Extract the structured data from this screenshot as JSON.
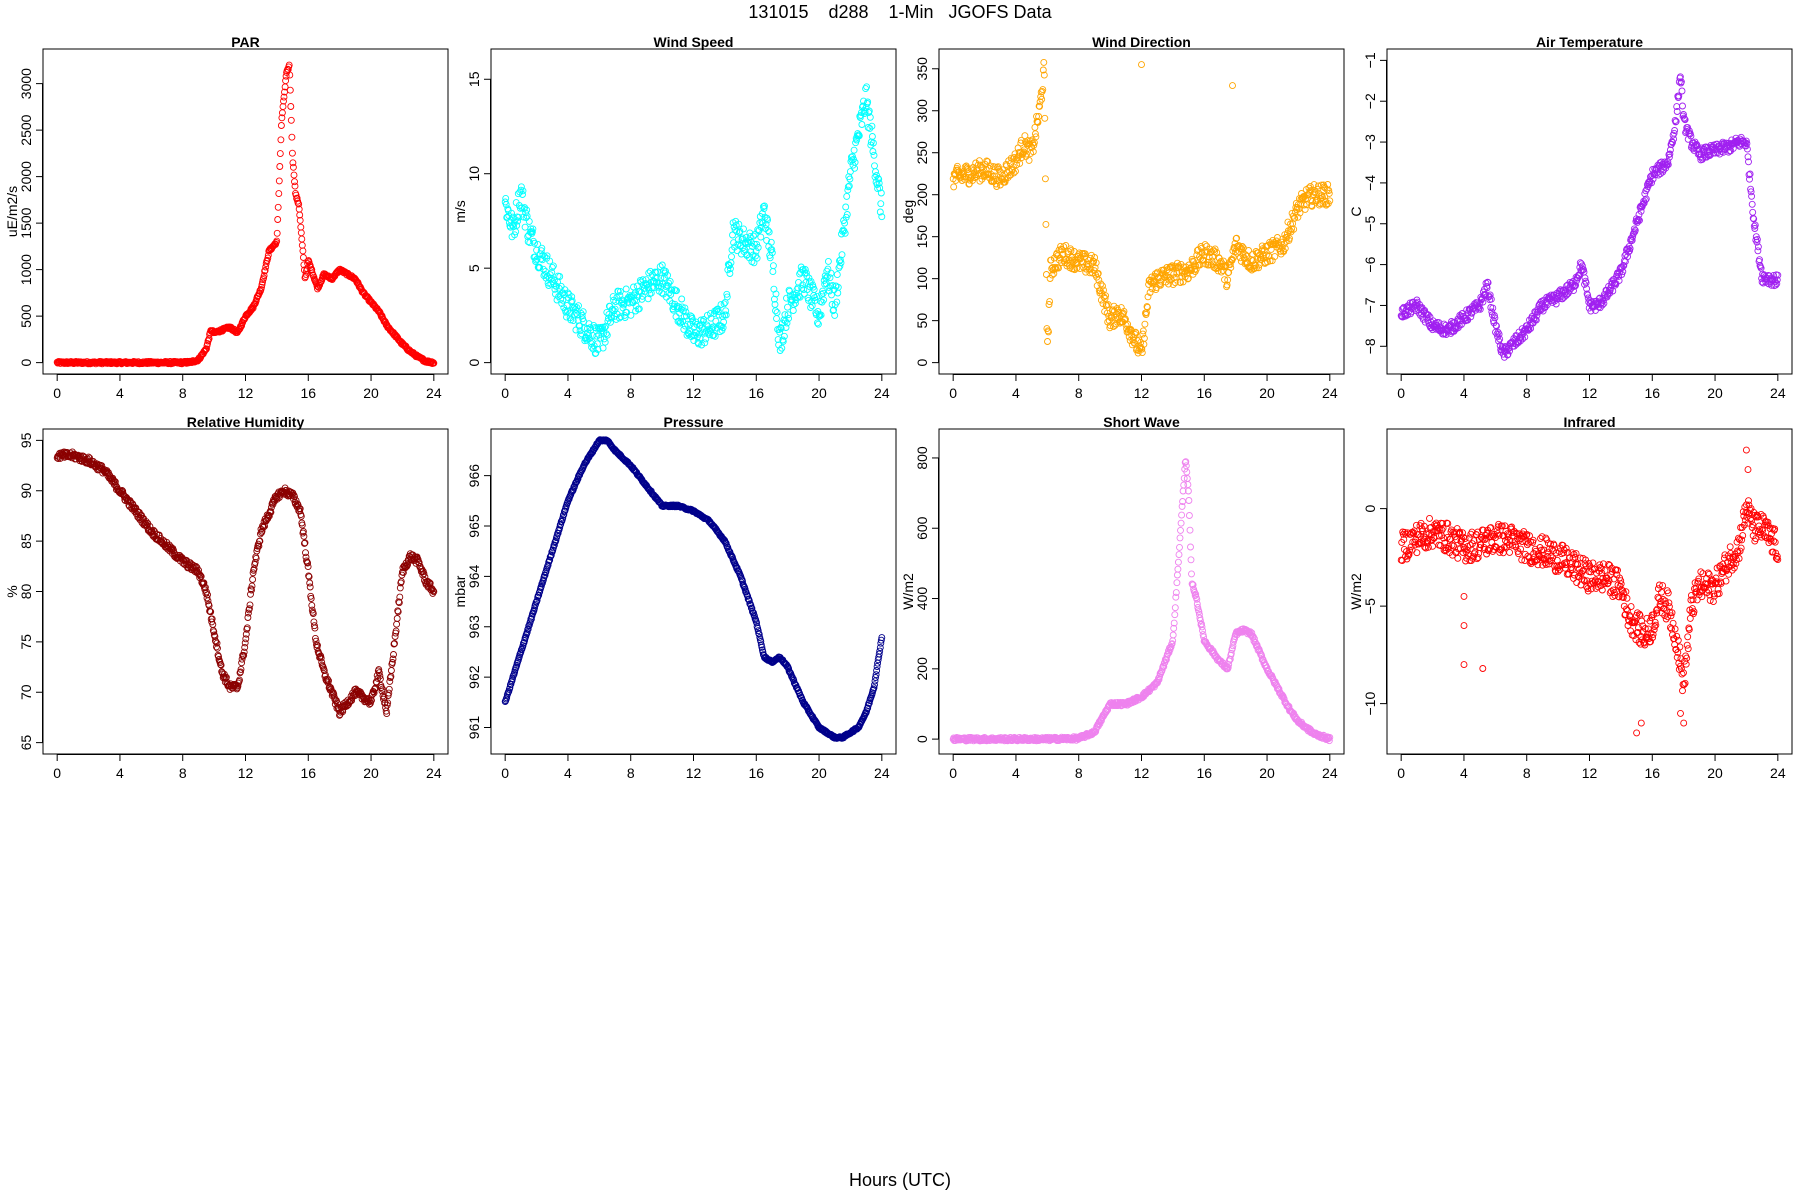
{
  "figure": {
    "title": "131015    d288    1-Min   JGOFS Data",
    "xlabel": "Hours (UTC)"
  },
  "chart_data": [
    {
      "type": "scatter",
      "title": "PAR",
      "ylabel": "uE/m2/s",
      "color": "#ff0000",
      "xlim": [
        0,
        24
      ],
      "ylim": [
        0,
        3250
      ],
      "xticks": [
        0,
        4,
        8,
        12,
        16,
        20,
        24
      ],
      "yticks": [
        0,
        500,
        1000,
        1500,
        2000,
        2500,
        3000
      ],
      "series": [
        {
          "x": [
            0,
            2,
            4,
            6,
            8,
            8.5,
            9,
            9.5,
            9.8,
            10,
            10.5,
            11,
            11.5,
            12,
            12.5,
            13,
            13.5,
            14,
            14.3,
            14.6,
            14.8,
            15,
            15.2,
            15.4,
            15.6,
            15.8,
            16,
            16.3,
            16.6,
            17,
            17.5,
            18,
            18.5,
            19,
            19.5,
            20,
            20.5,
            21,
            21.5,
            22,
            22.5,
            23,
            23.5,
            24
          ],
          "y": [
            0,
            0,
            0,
            0,
            0,
            5,
            30,
            150,
            350,
            320,
            350,
            380,
            320,
            500,
            600,
            800,
            1200,
            1300,
            2600,
            3100,
            3200,
            2200,
            1800,
            1700,
            1300,
            900,
            1100,
            950,
            800,
            950,
            900,
            1000,
            950,
            900,
            750,
            650,
            550,
            400,
            300,
            200,
            120,
            60,
            15,
            0
          ]
        }
      ]
    },
    {
      "type": "scatter",
      "title": "Wind Speed",
      "ylabel": "m/s",
      "color": "#00ffff",
      "xlim": [
        0,
        24
      ],
      "ylim": [
        0,
        16
      ],
      "xticks": [
        0,
        4,
        8,
        12,
        16,
        20,
        24
      ],
      "yticks": [
        0,
        5,
        10,
        15
      ],
      "series": [
        {
          "x": [
            0,
            0.5,
            1,
            1.5,
            2,
            3,
            4,
            5,
            6,
            6.5,
            7,
            8,
            9,
            10,
            11,
            12,
            13,
            14,
            14.5,
            15,
            16,
            16.5,
            17,
            17.5,
            18,
            19,
            20,
            20.5,
            21,
            22,
            22.5,
            23,
            23.5,
            24
          ],
          "y": [
            8.5,
            7,
            9,
            7,
            6,
            4.5,
            3,
            2,
            1,
            2,
            3,
            3.2,
            4,
            4.5,
            3,
            1.5,
            1.8,
            2.5,
            7,
            6.5,
            6,
            8,
            5.5,
            1,
            3,
            4.5,
            2.5,
            5,
            3,
            10,
            12,
            14,
            11,
            8
          ]
        }
      ]
    },
    {
      "type": "scatter",
      "title": "Wind Direction",
      "ylabel": "deg",
      "color": "#ffa500",
      "xlim": [
        0,
        24
      ],
      "ylim": [
        0,
        360
      ],
      "xticks": [
        0,
        4,
        8,
        12,
        16,
        20,
        24
      ],
      "yticks": [
        0,
        50,
        100,
        150,
        200,
        250,
        300,
        350
      ],
      "series": [
        {
          "x": [
            0,
            1,
            2,
            3,
            4,
            4.5,
            5,
            5.5,
            5.8,
            6,
            6.2,
            6.5,
            7,
            8,
            9,
            10,
            10.5,
            11,
            11.5,
            12,
            12.5,
            13,
            14,
            15,
            16,
            17,
            17.5,
            18,
            19,
            20,
            21,
            22,
            22.5,
            23,
            24
          ],
          "y": [
            220,
            225,
            230,
            220,
            240,
            260,
            250,
            300,
            350,
            10,
            110,
            120,
            130,
            120,
            115,
            50,
            60,
            50,
            30,
            10,
            90,
            100,
            105,
            110,
            130,
            120,
            100,
            140,
            120,
            130,
            140,
            185,
            195,
            200,
            200
          ]
        },
        {
          "x": [
            12,
            17.8
          ],
          "y": [
            355,
            330
          ]
        }
      ]
    },
    {
      "type": "scatter",
      "title": "Air Temperature",
      "ylabel": "C",
      "color": "#a020f0",
      "xlim": [
        0,
        24
      ],
      "ylim": [
        -8.4,
        -1
      ],
      "xticks": [
        0,
        4,
        8,
        12,
        16,
        20,
        24
      ],
      "yticks": [
        -8,
        -7,
        -6,
        -5,
        -4,
        -3,
        -2,
        -1
      ],
      "series": [
        {
          "x": [
            0,
            1,
            2,
            3,
            4,
            5,
            5.5,
            6,
            6.5,
            7,
            8,
            9,
            10,
            11,
            11.5,
            12,
            12.5,
            13,
            14,
            15,
            16,
            17,
            17.5,
            17.8,
            18,
            18.5,
            19,
            20,
            21,
            21.5,
            22,
            22.5,
            23,
            24
          ],
          "y": [
            -7.2,
            -7,
            -7.5,
            -7.6,
            -7.3,
            -7,
            -6.5,
            -7.5,
            -8.2,
            -8,
            -7.6,
            -7,
            -6.8,
            -6.5,
            -6,
            -7,
            -7,
            -6.8,
            -6.2,
            -5,
            -3.8,
            -3.5,
            -2.5,
            -1.3,
            -2.5,
            -3,
            -3.3,
            -3.2,
            -3.1,
            -3,
            -3,
            -5,
            -6.3,
            -6.4
          ]
        }
      ]
    },
    {
      "type": "scatter",
      "title": "Relative Humidity",
      "ylabel": "%",
      "color": "#8b0000",
      "xlim": [
        0,
        24
      ],
      "ylim": [
        65,
        95
      ],
      "xticks": [
        0,
        4,
        8,
        12,
        16,
        20,
        24
      ],
      "yticks": [
        65,
        70,
        75,
        80,
        85,
        90,
        95
      ],
      "series": [
        {
          "x": [
            0,
            1,
            2,
            3,
            4,
            5,
            6,
            7,
            8,
            9,
            9.5,
            10,
            10.5,
            11,
            11.5,
            12,
            12.5,
            13,
            14,
            14.5,
            15,
            15.5,
            16,
            16.5,
            17,
            17.5,
            18,
            18.5,
            19,
            20,
            20.5,
            21,
            21.5,
            22,
            22.5,
            23,
            23.5,
            24
          ],
          "y": [
            93.5,
            93.5,
            93,
            92,
            90,
            88,
            86,
            84.5,
            83,
            82,
            80,
            76,
            72,
            70.5,
            70.5,
            75,
            82,
            86,
            89.5,
            90,
            89.5,
            88,
            82,
            75,
            72,
            70,
            68,
            69,
            70,
            69,
            72,
            68,
            75,
            82,
            83.5,
            83,
            81,
            80
          ]
        }
      ]
    },
    {
      "type": "scatter",
      "title": "Pressure",
      "ylabel": "mbar",
      "color": "#00008b",
      "xlim": [
        0,
        24
      ],
      "ylim": [
        960.7,
        966.7
      ],
      "xticks": [
        0,
        4,
        8,
        12,
        16,
        20,
        24
      ],
      "yticks": [
        961,
        962,
        963,
        964,
        965,
        966
      ],
      "series": [
        {
          "x": [
            0,
            1,
            2,
            3,
            4,
            5,
            6,
            6.5,
            7,
            8,
            9,
            10,
            11,
            12,
            13,
            14,
            15,
            16,
            16.5,
            17,
            17.5,
            18,
            19,
            20,
            21,
            21.5,
            22,
            22.5,
            23,
            23.5,
            24
          ],
          "y": [
            961.5,
            962.5,
            963.5,
            964.5,
            965.5,
            966.2,
            966.7,
            966.7,
            966.5,
            966.2,
            965.8,
            965.4,
            965.4,
            965.3,
            965.1,
            964.7,
            964,
            963.1,
            962.4,
            962.3,
            962.4,
            962.2,
            961.5,
            961,
            960.8,
            960.8,
            960.9,
            961,
            961.3,
            961.8,
            962.8
          ]
        }
      ]
    },
    {
      "type": "scatter",
      "title": "Short Wave",
      "ylabel": "W/m2",
      "color": "#ee82ee",
      "xlim": [
        0,
        24
      ],
      "ylim": [
        -10,
        850
      ],
      "xticks": [
        0,
        4,
        8,
        12,
        16,
        20,
        24
      ],
      "yticks": [
        0,
        200,
        400,
        600,
        800
      ],
      "series": [
        {
          "x": [
            0,
            2,
            4,
            6,
            8,
            9,
            9.5,
            10,
            11,
            12,
            13,
            13.5,
            14,
            14.5,
            14.8,
            15,
            15.2,
            15.5,
            16,
            16.5,
            17,
            17.5,
            18,
            18.5,
            19,
            19.5,
            20,
            20.5,
            21,
            21.5,
            22,
            23,
            24
          ],
          "y": [
            0,
            0,
            0,
            0,
            2,
            20,
            60,
            100,
            100,
            120,
            160,
            220,
            280,
            600,
            800,
            700,
            450,
            400,
            280,
            250,
            220,
            200,
            300,
            310,
            300,
            250,
            200,
            160,
            120,
            80,
            50,
            15,
            0
          ]
        }
      ]
    },
    {
      "type": "scatter",
      "title": "Infrared",
      "ylabel": "W/m2",
      "color": "#ff0000",
      "xlim": [
        0,
        24
      ],
      "ylim": [
        -12,
        3.5
      ],
      "xticks": [
        0,
        4,
        8,
        12,
        16,
        20,
        24
      ],
      "yticks": [
        -10,
        -5,
        0
      ],
      "series": [
        {
          "x": [
            0,
            1,
            2,
            3,
            4,
            5,
            6,
            7,
            8,
            9,
            10,
            11,
            12,
            13,
            14,
            14.5,
            15,
            15.5,
            16,
            16.5,
            17,
            17.5,
            18,
            18.5,
            19,
            20,
            21,
            21.5,
            22,
            22.5,
            23,
            23.5,
            24
          ],
          "y": [
            -2,
            -1.5,
            -1.2,
            -1.5,
            -2,
            -1.8,
            -1.5,
            -1.6,
            -2,
            -2.2,
            -2.5,
            -3,
            -3.5,
            -3.5,
            -4,
            -5.5,
            -6,
            -6.5,
            -6,
            -4.5,
            -5,
            -6.5,
            -9,
            -5,
            -4,
            -4,
            -2.5,
            -2,
            0,
            -1,
            -1,
            -1.5,
            -2
          ]
        },
        {
          "x": [
            4,
            4,
            4,
            5.2,
            15,
            15.3,
            17.8,
            18,
            22,
            22.1
          ],
          "y": [
            -4.5,
            -6,
            -8,
            -8.2,
            -11.5,
            -11,
            -10.5,
            -11,
            3,
            2
          ]
        }
      ]
    }
  ]
}
